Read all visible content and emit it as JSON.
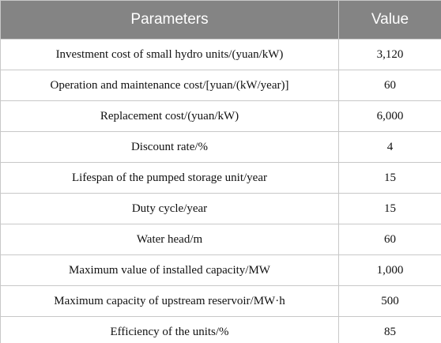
{
  "table": {
    "header": [
      "Parameters",
      "Value"
    ],
    "rows": [
      [
        "Investment cost of small hydro units/(yuan/kW)",
        "3,120"
      ],
      [
        "Operation and maintenance cost/[yuan/(kW/year)]",
        "60"
      ],
      [
        "Replacement cost/(yuan/kW)",
        "6,000"
      ],
      [
        "Discount rate/%",
        "4"
      ],
      [
        "Lifespan of the pumped storage unit/year",
        "15"
      ],
      [
        "Duty cycle/year",
        "15"
      ],
      [
        "Water head/m",
        "60"
      ],
      [
        "Maximum value of installed capacity/MW",
        "1,000"
      ],
      [
        "Maximum capacity of upstream reservoir/MW·h",
        "500"
      ],
      [
        "Efficiency of the units/%",
        "85"
      ]
    ]
  }
}
